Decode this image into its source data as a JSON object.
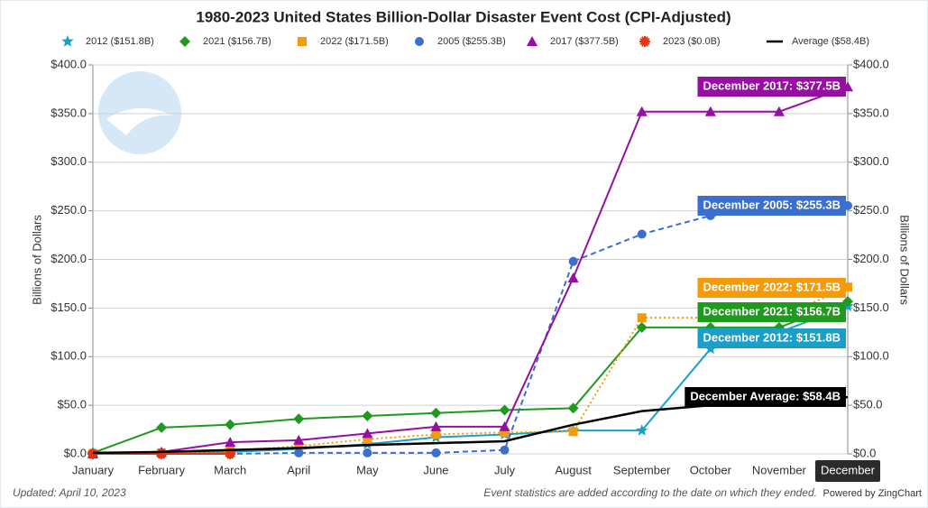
{
  "chart_data": {
    "type": "line",
    "title": "1980-2023 United States Billion-Dollar Disaster Event Cost (CPI-Adjusted)",
    "y_label": "Billions of Dollars",
    "y2_label": "Billions of Dollars",
    "categories": [
      "January",
      "February",
      "March",
      "April",
      "May",
      "June",
      "July",
      "August",
      "September",
      "October",
      "November",
      "December"
    ],
    "ylim": [
      0,
      400
    ],
    "yticks": [
      {
        "value": 0,
        "label": "$0.0"
      },
      {
        "value": 50,
        "label": "$50.0"
      },
      {
        "value": 100,
        "label": "$100.0"
      },
      {
        "value": 150,
        "label": "$150.0"
      },
      {
        "value": 200,
        "label": "$200.0"
      },
      {
        "value": 250,
        "label": "$250.0"
      },
      {
        "value": 300,
        "label": "$300.0"
      },
      {
        "value": 350,
        "label": "$350.0"
      },
      {
        "value": 400,
        "label": "$400.0"
      }
    ],
    "y2lim": [
      0,
      400
    ],
    "y2ticks": [
      {
        "value": 0,
        "label": "$0.0"
      },
      {
        "value": 50,
        "label": "$50.0"
      },
      {
        "value": 100,
        "label": "$100.0"
      },
      {
        "value": 150,
        "label": "$150.0"
      },
      {
        "value": 200,
        "label": "$200.0"
      },
      {
        "value": 250,
        "label": "$250.0"
      },
      {
        "value": 300,
        "label": "$300.0"
      },
      {
        "value": 350,
        "label": "$350.0"
      },
      {
        "value": 400,
        "label": "$400.0"
      }
    ],
    "grid": true,
    "legend": "top",
    "series": [
      {
        "name": "2012 ($151.8B)",
        "color": "#1a9fc8",
        "marker": "star",
        "dash": "solid",
        "values": [
          0,
          1,
          2,
          5,
          10,
          17,
          20,
          24,
          24,
          108,
          125,
          151.8
        ],
        "value_labels": [
          null,
          null,
          null,
          null,
          null,
          null,
          null,
          null,
          null,
          null,
          null,
          "December 2012: $151.8B"
        ]
      },
      {
        "name": "2021 ($156.7B)",
        "color": "#1f9a1f",
        "marker": "diamond",
        "dash": "solid",
        "values": [
          1,
          27,
          30,
          36,
          39,
          42,
          45,
          47,
          130,
          130,
          130,
          156.7
        ],
        "value_labels": [
          null,
          null,
          null,
          null,
          null,
          null,
          null,
          null,
          null,
          null,
          null,
          "December 2021: $156.7B"
        ]
      },
      {
        "name": "2022 ($171.5B)",
        "color": "#f59b0a",
        "marker": "square",
        "dash": "dotted",
        "values": [
          0,
          1,
          3,
          8,
          15,
          20,
          22,
          23,
          140,
          140,
          140,
          171.5
        ],
        "value_labels": [
          null,
          null,
          null,
          null,
          null,
          null,
          null,
          null,
          null,
          null,
          null,
          "December 2022: $171.5B"
        ]
      },
      {
        "name": "2005 ($255.3B)",
        "color": "#3a6fd0",
        "marker": "circle",
        "dash": "dashed",
        "values": [
          0,
          0,
          0,
          1,
          1,
          1,
          4,
          198,
          226,
          245,
          250,
          255.3
        ],
        "value_labels": [
          null,
          null,
          null,
          null,
          null,
          null,
          null,
          null,
          null,
          null,
          null,
          "December 2005: $255.3B"
        ]
      },
      {
        "name": "2017 ($377.5B)",
        "color": "#970ea3",
        "marker": "triangle",
        "dash": "solid",
        "values": [
          0,
          2,
          12,
          14,
          21,
          28,
          28,
          181,
          352,
          352,
          352,
          377.5
        ],
        "value_labels": [
          null,
          null,
          null,
          null,
          null,
          null,
          null,
          null,
          null,
          null,
          null,
          "December 2017: $377.5B"
        ]
      },
      {
        "name": "2023 ($0.0B)",
        "color": "#e5330f",
        "marker": "asterisk",
        "dash": "solid",
        "values": [
          0,
          0,
          0,
          null,
          null,
          null,
          null,
          null,
          null,
          null,
          null,
          null
        ]
      },
      {
        "name": "Average ($58.4B)",
        "color": "#000000",
        "marker": "none",
        "dash": "solid",
        "values": [
          1,
          2,
          4,
          6,
          9,
          11,
          13,
          30,
          44,
          50,
          54,
          58.4
        ],
        "value_labels": [
          null,
          null,
          null,
          null,
          null,
          null,
          null,
          null,
          null,
          null,
          null,
          "December Average: $58.4B"
        ]
      }
    ],
    "footer_left": "Updated: April 10, 2023",
    "footer_note": "Event statistics are added according to the date on which they ended.",
    "credit": "Powered by ZingChart"
  }
}
